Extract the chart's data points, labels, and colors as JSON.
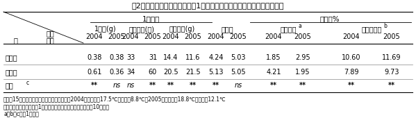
{
  "title": "表2　加温区と露地区における1年生鉢植え茶樹の一番茶新芽の形質比較",
  "header_group1": "1株当り",
  "header_group2": "乾物中%",
  "subheaders": [
    "1芽重(g)",
    "全新芽数(本)",
    "全新芽重(g)",
    "全空素",
    "アミノ酸",
    "カテキン類"
  ],
  "superscripts_sub": [
    "",
    "",
    "",
    "",
    "a",
    "b"
  ],
  "years": [
    "2004",
    "2005"
  ],
  "row_labels": [
    "加温区",
    "露地区",
    "検定"
  ],
  "kentei_super": "c",
  "row_vals": [
    [
      "0.38",
      "0.38",
      "33",
      "31",
      "14.4",
      "11.6",
      "4.24",
      "5.03",
      "1.85",
      "2.95",
      "10.60",
      "11.69"
    ],
    [
      "0.61",
      "0.36",
      "34",
      "60",
      "20.5",
      "21.5",
      "5.13",
      "5.05",
      "4.21",
      "1.95",
      "7.89",
      "9.73"
    ],
    [
      "**",
      "ns",
      "ns",
      "**",
      "**",
      "**",
      "**",
      "ns",
      "**",
      "**",
      "**",
      "**"
    ]
  ],
  "footnotes": [
    "数値は15株の平均で、秋から春の平均気温は2004年は加温区17.5℃、露地区8.8℃、2005年は加温区18.8℃、露地区12.1℃",
    "加温区の最終整枝時期は1月中旬で、露地区の最終整枝時期は10月下旬",
    "a、b、c：表1と同じ"
  ]
}
